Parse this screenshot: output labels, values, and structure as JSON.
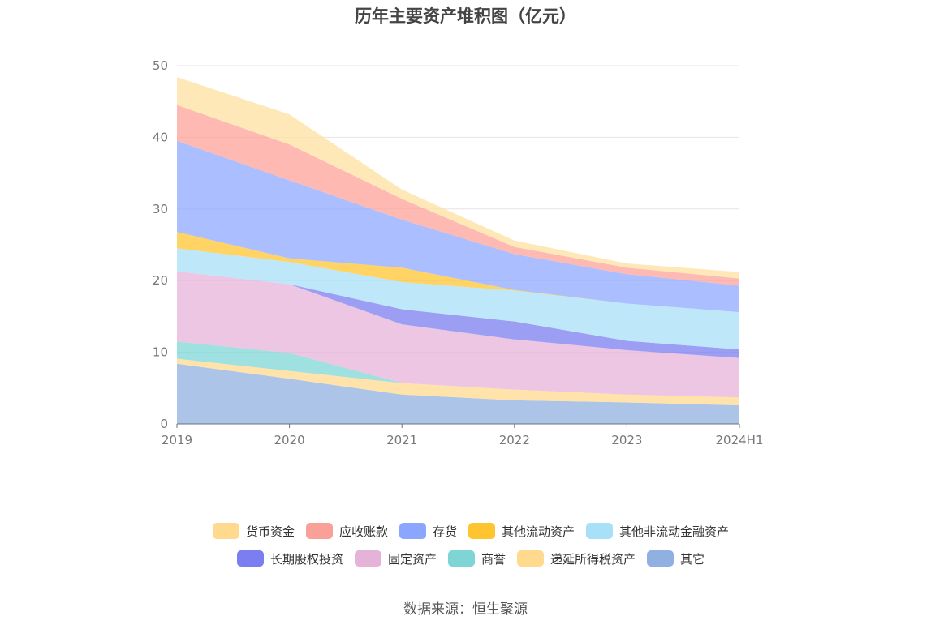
{
  "title": "历年主要资产堆积图（亿元）",
  "source": "数据来源：恒生聚源",
  "chart_data": {
    "type": "area",
    "stacked": true,
    "title": "历年主要资产堆积图（亿元）",
    "x": [
      "2019",
      "2020",
      "2021",
      "2022",
      "2023",
      "2024H1"
    ],
    "ylim": [
      0,
      50
    ],
    "yticks": [
      0,
      10,
      20,
      30,
      40,
      50
    ],
    "grid": true,
    "legend_position": "bottom",
    "series": [
      {
        "name": "其它",
        "color": "#8fb0e0",
        "values": [
          8.4,
          6.3,
          4.1,
          3.3,
          3.0,
          2.6
        ]
      },
      {
        "name": "递延所得税资产",
        "color": "#ffd98e",
        "values": [
          0.7,
          1.1,
          1.6,
          1.5,
          1.1,
          1.1
        ]
      },
      {
        "name": "商誉",
        "color": "#7fd5d5",
        "values": [
          2.4,
          2.5,
          0,
          0,
          0,
          0
        ]
      },
      {
        "name": "固定资产",
        "color": "#e6b3d8",
        "values": [
          9.8,
          9.6,
          8.2,
          7.0,
          6.2,
          5.5
        ]
      },
      {
        "name": "长期股权投资",
        "color": "#7b7ef0",
        "values": [
          0,
          0,
          2.1,
          2.5,
          1.3,
          1.2
        ]
      },
      {
        "name": "其他非流动金融资产",
        "color": "#a8e0f8",
        "values": [
          3.2,
          3.1,
          3.8,
          4.3,
          5.2,
          5.2
        ]
      },
      {
        "name": "其他流动资产",
        "color": "#ffc531",
        "values": [
          2.3,
          0.5,
          2.0,
          0.1,
          0,
          0
        ]
      },
      {
        "name": "存货",
        "color": "#8fa8ff",
        "values": [
          12.7,
          10.9,
          6.7,
          5.0,
          4.1,
          3.7
        ]
      },
      {
        "name": "应收账款",
        "color": "#ffa29a",
        "values": [
          5.0,
          5.0,
          2.9,
          1.0,
          0.9,
          1.0
        ]
      },
      {
        "name": "货币资金",
        "color": "#ffe0a0",
        "values": [
          3.9,
          4.2,
          1.3,
          0.9,
          0.6,
          0.9
        ]
      }
    ],
    "legend_order": [
      "货币资金",
      "应收账款",
      "存货",
      "其他流动资产",
      "其他非流动金融资产",
      "长期股权投资",
      "固定资产",
      "商誉",
      "递延所得税资产",
      "其它"
    ],
    "legend_colors": {
      "货币资金": "#ffd98e",
      "应收账款": "#f9a199",
      "存货": "#8aa6ff",
      "其他流动资产": "#ffc531",
      "其他非流动金融资产": "#a8e0f8",
      "长期股权投资": "#7b7ef0",
      "固定资产": "#e6b3d8",
      "商誉": "#7fd5d5",
      "递延所得税资产": "#ffd98e",
      "其它": "#8fb0e0"
    },
    "legend_display_names": [
      "货币资金",
      "应收账款",
      "存货",
      "其他流动资产",
      "其他非流动金融资产",
      "长期股权投资",
      "固定资产",
      "商誉",
      "递延所得税资产",
      "其它"
    ]
  }
}
